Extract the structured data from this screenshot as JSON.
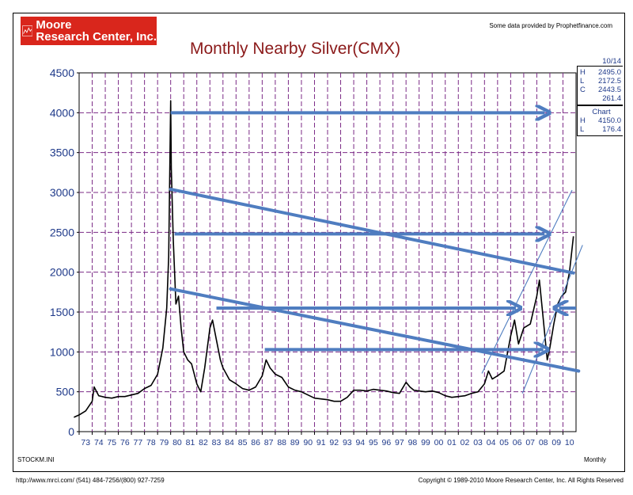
{
  "logo": {
    "line1": "Moore",
    "line2": "Research Center, Inc."
  },
  "provider_note": "Some data provided by Prophetfinance.com",
  "sidebar": {
    "date": "10/14",
    "recent": [
      {
        "k": "H",
        "v": "2495.0"
      },
      {
        "k": "L",
        "v": "2172.5"
      },
      {
        "k": "C",
        "v": "2443.5"
      },
      {
        "k": "",
        "v": "261.4"
      }
    ],
    "chart_label": "Chart",
    "chart_range": [
      {
        "k": "H",
        "v": "4150.0"
      },
      {
        "k": "L",
        "v": "176.4"
      }
    ]
  },
  "footer": {
    "left_inner": "STOCKM.INI",
    "right_inner": "Monthly",
    "url_phone": "http://www.mrci.com/  (541) 484-7256/(800) 927-7259",
    "copyright": "Copyright © 1989-2010 Moore Research Center, Inc. All Rights Reserved"
  },
  "colors": {
    "price_line": "#000000",
    "grid": "#7b2a86",
    "arrows": "#4f7dc0",
    "axis_labels": "#1f3a8a",
    "title": "#8b1a1a",
    "logo_bg": "#d9261c"
  },
  "chart_data": {
    "type": "line",
    "title": "Monthly Nearby Silver(CMX)",
    "xlabel": "",
    "ylabel": "",
    "ylim": [
      0,
      4500
    ],
    "xlim": [
      1973,
      2011
    ],
    "grid": true,
    "y_ticks": [
      0,
      500,
      1000,
      1500,
      2000,
      2500,
      3000,
      3500,
      4000,
      4500
    ],
    "x_tick_labels": [
      "73",
      "74",
      "75",
      "76",
      "77",
      "78",
      "79",
      "80",
      "81",
      "82",
      "83",
      "84",
      "85",
      "86",
      "87",
      "88",
      "89",
      "90",
      "91",
      "92",
      "93",
      "94",
      "95",
      "96",
      "97",
      "98",
      "99",
      "00",
      "01",
      "02",
      "03",
      "04",
      "05",
      "06",
      "07",
      "08",
      "09",
      "10"
    ],
    "series": [
      {
        "x": [
          1972.6,
          1973.0,
          1973.5,
          1974.0,
          1974.15,
          1974.5,
          1975.0,
          1975.5,
          1976.0,
          1976.5,
          1977.0,
          1977.5,
          1978.0,
          1978.5,
          1979.0,
          1979.4,
          1979.7,
          1979.85,
          1980.0,
          1980.05,
          1980.2,
          1980.4,
          1980.6,
          1980.8,
          1981.0,
          1981.3,
          1981.6,
          1982.0,
          1982.3,
          1982.6,
          1983.0,
          1983.2,
          1983.5,
          1983.8,
          1984.0,
          1984.5,
          1985.0,
          1985.5,
          1986.0,
          1986.5,
          1987.0,
          1987.3,
          1987.6,
          1988.0,
          1988.5,
          1989.0,
          1989.5,
          1990.0,
          1990.5,
          1991.0,
          1991.5,
          1992.0,
          1992.5,
          1993.0,
          1993.5,
          1994.0,
          1994.5,
          1995.0,
          1995.5,
          1996.0,
          1996.5,
          1997.0,
          1997.5,
          1998.0,
          1998.3,
          1998.6,
          1999.0,
          1999.5,
          2000.0,
          2000.5,
          2001.0,
          2001.5,
          2002.0,
          2002.5,
          2003.0,
          2003.5,
          2004.0,
          2004.3,
          2004.6,
          2005.0,
          2005.5,
          2006.0,
          2006.3,
          2006.6,
          2007.0,
          2007.5,
          2008.0,
          2008.2,
          2008.5,
          2008.8,
          2009.0,
          2009.3,
          2009.6,
          2009.9,
          2010.2,
          2010.5,
          2010.8
        ],
        "y": [
          180,
          210,
          260,
          380,
          560,
          450,
          430,
          420,
          440,
          440,
          460,
          480,
          540,
          580,
          720,
          1050,
          1550,
          2200,
          4150,
          3300,
          2400,
          1600,
          1700,
          1300,
          1000,
          900,
          850,
          600,
          500,
          800,
          1300,
          1400,
          1150,
          900,
          800,
          650,
          600,
          540,
          520,
          560,
          700,
          900,
          800,
          720,
          680,
          560,
          520,
          500,
          460,
          420,
          410,
          400,
          380,
          380,
          430,
          520,
          520,
          510,
          530,
          520,
          510,
          490,
          480,
          620,
          560,
          520,
          510,
          500,
          510,
          490,
          450,
          430,
          440,
          450,
          480,
          500,
          600,
          760,
          660,
          700,
          760,
          1200,
          1400,
          1100,
          1300,
          1350,
          1700,
          1900,
          1400,
          900,
          1050,
          1350,
          1600,
          1700,
          1750,
          2000,
          2450
        ]
      }
    ],
    "annotations": {
      "arrows_horizontal": [
        {
          "x1": 1980.0,
          "x2": 2008.6,
          "y": 4000
        },
        {
          "x1": 1980.3,
          "x2": 2008.6,
          "y": 2480
        },
        {
          "x1": 1983.5,
          "x2": 2006.4,
          "y": 1550
        },
        {
          "x1": 1987.2,
          "x2": 2008.5,
          "y": 1030
        },
        {
          "x1": 2011.0,
          "x2": 2009.7,
          "y": 1550
        }
      ],
      "trend_lines": [
        {
          "x1": 1980.0,
          "y1": 3040,
          "x2": 2010.8,
          "y2": 1990
        },
        {
          "x1": 1980.0,
          "y1": 1790,
          "x2": 2011.2,
          "y2": 760
        }
      ],
      "channel_lines": [
        {
          "x1": 2003.8,
          "y1": 730,
          "x2": 2010.7,
          "y2": 3030
        },
        {
          "x1": 2006.9,
          "y1": 480,
          "x2": 2011.5,
          "y2": 2340
        }
      ]
    }
  }
}
